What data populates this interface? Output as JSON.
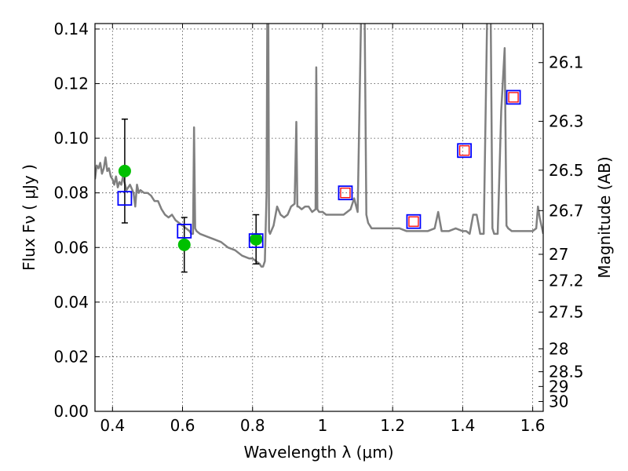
{
  "chart_data": {
    "type": "scatter",
    "xlabel": "Wavelength  λ (μm)",
    "ylabel": "Flux  Fν  ( μJy )",
    "y2label": "Magnitude (AB)",
    "xlim": [
      0.35,
      1.63
    ],
    "ylim": [
      0.0,
      0.142
    ],
    "grid": true,
    "x_ticks": [
      {
        "value": 0.4,
        "label": "0.4"
      },
      {
        "value": 0.6,
        "label": "0.6"
      },
      {
        "value": 0.8,
        "label": "0.8"
      },
      {
        "value": 1.0,
        "label": "1"
      },
      {
        "value": 1.2,
        "label": "1.2"
      },
      {
        "value": 1.4,
        "label": "1.4"
      },
      {
        "value": 1.6,
        "label": "1.6"
      }
    ],
    "y_ticks": [
      {
        "value": 0.0,
        "label": "0.00"
      },
      {
        "value": 0.02,
        "label": "0.02"
      },
      {
        "value": 0.04,
        "label": "0.04"
      },
      {
        "value": 0.06,
        "label": "0.06"
      },
      {
        "value": 0.08,
        "label": "0.08"
      },
      {
        "value": 0.1,
        "label": "0.10"
      },
      {
        "value": 0.12,
        "label": "0.12"
      },
      {
        "value": 0.14,
        "label": "0.14"
      }
    ],
    "y2_ticks": [
      {
        "label": "26.1",
        "flux": 0.1277
      },
      {
        "label": "26.3",
        "flux": 0.1062
      },
      {
        "label": "26.5",
        "flux": 0.0883
      },
      {
        "label": "26.7",
        "flux": 0.0735
      },
      {
        "label": "27",
        "flux": 0.0575
      },
      {
        "label": "27.2",
        "flux": 0.0479
      },
      {
        "label": "27.5",
        "flux": 0.0363
      },
      {
        "label": "28",
        "flux": 0.0229
      },
      {
        "label": "28.5",
        "flux": 0.0145
      },
      {
        "label": "29",
        "flux": 0.0091
      },
      {
        "label": "30",
        "flux": 0.0036
      }
    ],
    "series": [
      {
        "kind": "line",
        "color": "#808080",
        "x": [
          0.35,
          0.355,
          0.36,
          0.365,
          0.37,
          0.375,
          0.38,
          0.385,
          0.39,
          0.395,
          0.4,
          0.405,
          0.41,
          0.415,
          0.42,
          0.425,
          0.43,
          0.44,
          0.45,
          0.46,
          0.465,
          0.47,
          0.475,
          0.48,
          0.49,
          0.5,
          0.51,
          0.52,
          0.53,
          0.54,
          0.55,
          0.56,
          0.57,
          0.58,
          0.59,
          0.6,
          0.61,
          0.62,
          0.625,
          0.63,
          0.633,
          0.636,
          0.64,
          0.65,
          0.67,
          0.69,
          0.71,
          0.73,
          0.75,
          0.77,
          0.79,
          0.8,
          0.81,
          0.82,
          0.825,
          0.83,
          0.835,
          0.84,
          0.842,
          0.845,
          0.847,
          0.85,
          0.86,
          0.87,
          0.88,
          0.89,
          0.9,
          0.91,
          0.92,
          0.925,
          0.928,
          0.931,
          0.94,
          0.95,
          0.96,
          0.97,
          0.98,
          0.982,
          0.985,
          0.99,
          1.0,
          1.01,
          1.02,
          1.04,
          1.06,
          1.08,
          1.09,
          1.1,
          1.11,
          1.12,
          1.125,
          1.13,
          1.135,
          1.14,
          1.16,
          1.18,
          1.2,
          1.22,
          1.24,
          1.26,
          1.28,
          1.3,
          1.32,
          1.33,
          1.34,
          1.36,
          1.38,
          1.4,
          1.41,
          1.42,
          1.43,
          1.44,
          1.45,
          1.46,
          1.47,
          1.48,
          1.485,
          1.49,
          1.5,
          1.51,
          1.52,
          1.525,
          1.53,
          1.54,
          1.55,
          1.56,
          1.57,
          1.58,
          1.59,
          1.6,
          1.61,
          1.615,
          1.62,
          1.63
        ],
        "y": [
          0.085,
          0.09,
          0.089,
          0.091,
          0.087,
          0.089,
          0.093,
          0.088,
          0.089,
          0.086,
          0.085,
          0.083,
          0.086,
          0.082,
          0.084,
          0.083,
          0.086,
          0.081,
          0.083,
          0.08,
          0.075,
          0.083,
          0.08,
          0.081,
          0.08,
          0.08,
          0.079,
          0.077,
          0.077,
          0.074,
          0.072,
          0.071,
          0.072,
          0.07,
          0.069,
          0.068,
          0.067,
          0.066,
          0.065,
          0.065,
          0.104,
          0.067,
          0.066,
          0.065,
          0.064,
          0.063,
          0.062,
          0.06,
          0.059,
          0.057,
          0.056,
          0.056,
          0.055,
          0.054,
          0.053,
          0.053,
          0.055,
          0.08,
          0.145,
          0.145,
          0.066,
          0.065,
          0.068,
          0.075,
          0.072,
          0.071,
          0.072,
          0.075,
          0.076,
          0.106,
          0.075,
          0.075,
          0.074,
          0.075,
          0.075,
          0.073,
          0.074,
          0.126,
          0.074,
          0.073,
          0.073,
          0.072,
          0.072,
          0.072,
          0.072,
          0.074,
          0.078,
          0.073,
          0.145,
          0.145,
          0.072,
          0.069,
          0.068,
          0.067,
          0.067,
          0.067,
          0.067,
          0.067,
          0.066,
          0.066,
          0.066,
          0.066,
          0.067,
          0.073,
          0.066,
          0.066,
          0.067,
          0.066,
          0.066,
          0.065,
          0.072,
          0.072,
          0.065,
          0.065,
          0.145,
          0.145,
          0.067,
          0.065,
          0.065,
          0.11,
          0.133,
          0.068,
          0.067,
          0.066,
          0.066,
          0.066,
          0.066,
          0.066,
          0.066,
          0.066,
          0.067,
          0.075,
          0.071,
          0.065
        ]
      },
      {
        "kind": "errorbar",
        "marker": "circle",
        "color": "#00c000",
        "x": [
          0.435,
          0.605,
          0.81
        ],
        "y": [
          0.088,
          0.061,
          0.063
        ],
        "err_low": [
          0.019,
          0.01,
          0.009
        ],
        "err_high": [
          0.019,
          0.01,
          0.009
        ]
      },
      {
        "kind": "scatter",
        "marker": "open-square",
        "color": "#0000ff",
        "x": [
          0.435,
          0.605,
          0.81,
          1.065,
          1.26,
          1.405,
          1.545
        ],
        "y": [
          0.078,
          0.066,
          0.0625,
          0.08,
          0.0695,
          0.0955,
          0.115
        ]
      },
      {
        "kind": "scatter",
        "marker": "open-square-small",
        "color": "#ff0000",
        "x": [
          1.065,
          1.26,
          1.405,
          1.545
        ],
        "y": [
          0.08,
          0.0695,
          0.0955,
          0.115
        ]
      }
    ]
  }
}
